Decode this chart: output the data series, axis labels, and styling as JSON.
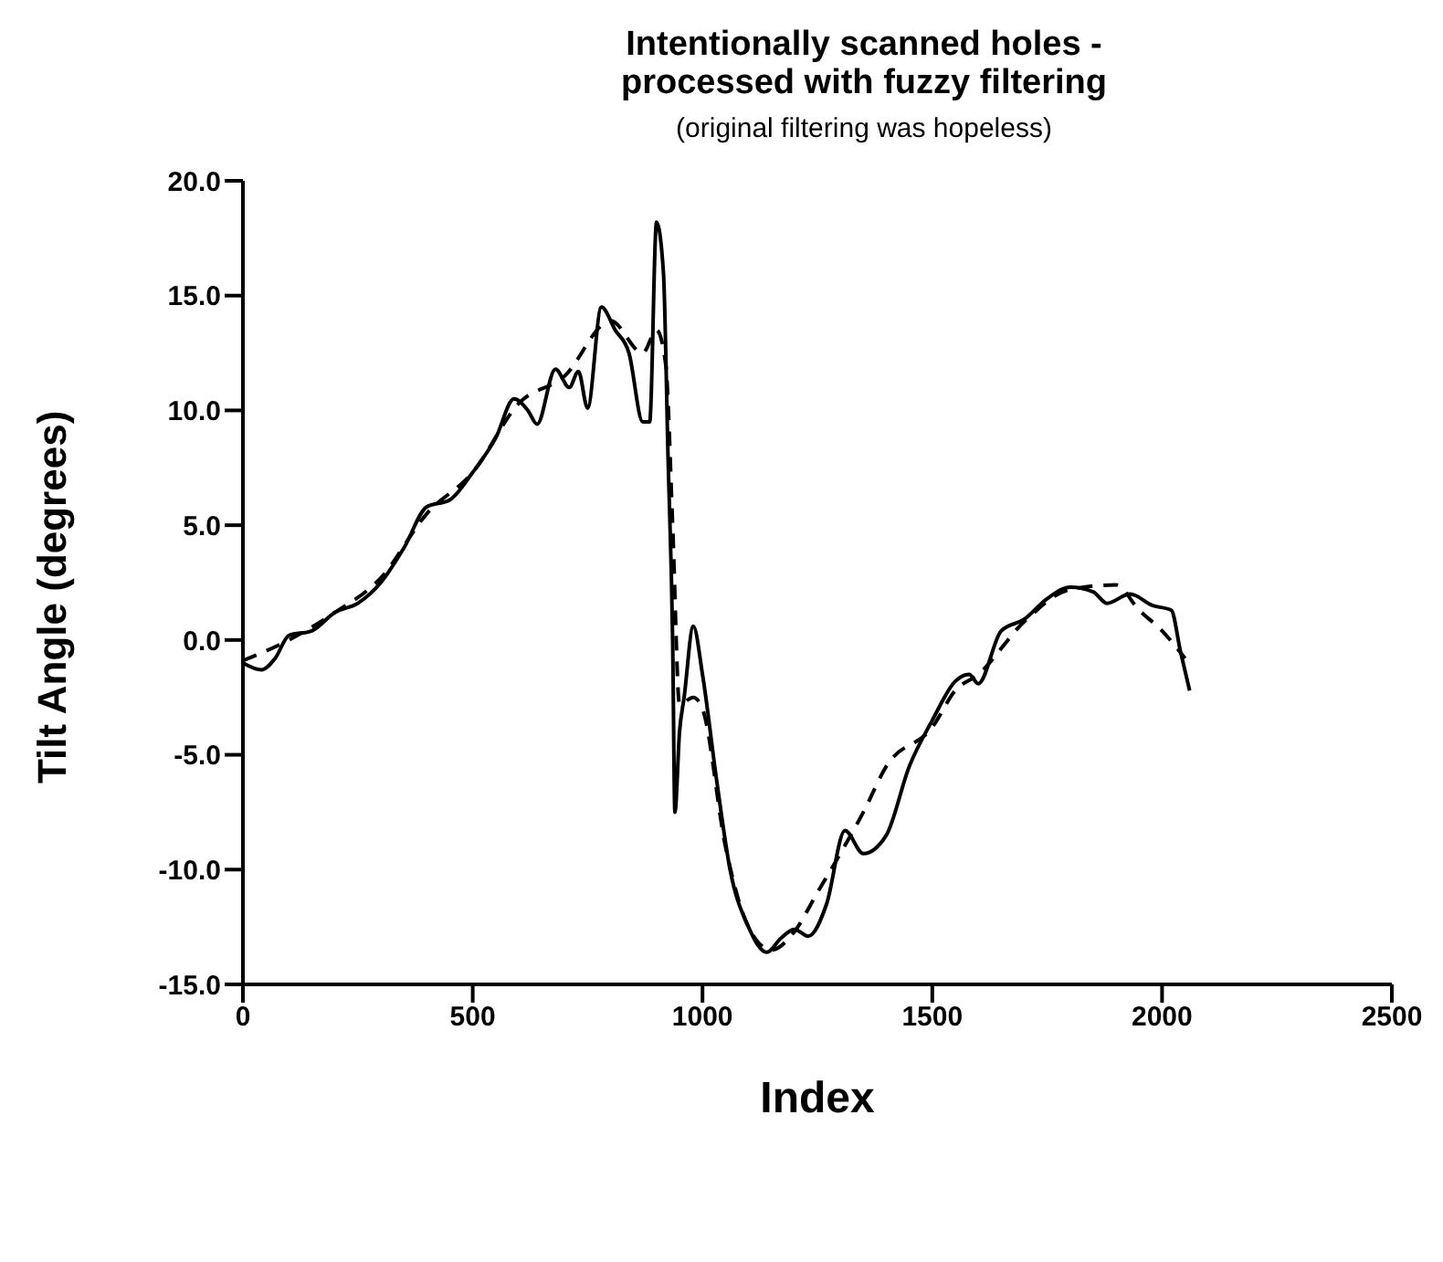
{
  "chart_data": {
    "type": "line",
    "title": "Intentionally scanned holes - processed with fuzzy filtering",
    "subtitle": "(original filtering was hopeless)",
    "xlabel": "Index",
    "ylabel": "Tilt Angle (degrees)",
    "xlim": [
      0,
      2500
    ],
    "xticks": [
      0,
      500,
      1000,
      1500,
      2000,
      2500
    ],
    "ylim": [
      -15,
      20
    ],
    "yticks": [
      {
        "value": -15,
        "label": "-15.0"
      },
      {
        "value": -10,
        "label": "-10.0"
      },
      {
        "value": -5,
        "label": "-5.0"
      },
      {
        "value": 0,
        "label": "0.0"
      },
      {
        "value": 5,
        "label": "5.0"
      },
      {
        "value": 10,
        "label": "10.0"
      },
      {
        "value": 15,
        "label": "15.0"
      },
      {
        "value": 20,
        "label": "20.0"
      }
    ],
    "grid": false,
    "legend": false,
    "marker": "none",
    "series": [
      {
        "color": "#000000",
        "line_style": "solid",
        "x": [
          0,
          40,
          70,
          100,
          150,
          200,
          250,
          300,
          350,
          400,
          450,
          500,
          550,
          590,
          620,
          640,
          680,
          710,
          730,
          750,
          780,
          810,
          840,
          870,
          885,
          900,
          915,
          925,
          935,
          940,
          950,
          960,
          980,
          1000,
          1030,
          1060,
          1100,
          1140,
          1170,
          1200,
          1230,
          1270,
          1310,
          1350,
          1400,
          1450,
          1500,
          1550,
          1580,
          1600,
          1650,
          1700,
          1750,
          1800,
          1850,
          1880,
          1930,
          1980,
          2020,
          2040,
          2060
        ],
        "values": [
          -1.0,
          -1.3,
          -0.8,
          0.2,
          0.4,
          1.2,
          1.6,
          2.5,
          4.0,
          5.8,
          6.1,
          7.3,
          8.8,
          10.5,
          10.0,
          9.4,
          11.8,
          11.0,
          11.7,
          10.1,
          14.5,
          13.5,
          12.5,
          9.5,
          9.5,
          18.2,
          16.0,
          8.0,
          0.0,
          -7.5,
          -4.0,
          -2.5,
          0.6,
          -1.5,
          -6.0,
          -10.0,
          -12.5,
          -13.6,
          -13.0,
          -12.6,
          -12.9,
          -11.5,
          -8.3,
          -9.3,
          -8.5,
          -5.5,
          -3.5,
          -1.8,
          -1.5,
          -1.9,
          0.4,
          0.9,
          1.8,
          2.3,
          2.1,
          1.6,
          2.0,
          1.5,
          1.3,
          -0.5,
          -2.2
        ]
      },
      {
        "color": "#000000",
        "line_style": "dashed",
        "x": [
          0,
          100,
          200,
          300,
          400,
          500,
          600,
          700,
          800,
          870,
          900,
          920,
          935,
          950,
          980,
          1000,
          1050,
          1100,
          1150,
          1200,
          1250,
          1300,
          1350,
          1400,
          1500,
          1550,
          1600,
          1700,
          1800,
          1900,
          1950,
          2000,
          2050
        ],
        "values": [
          -0.9,
          0.0,
          1.2,
          2.7,
          5.5,
          7.3,
          10.3,
          11.5,
          13.9,
          12.5,
          13.5,
          12.0,
          5.0,
          -2.8,
          -2.5,
          -3.0,
          -9.0,
          -12.5,
          -13.5,
          -12.7,
          -11.0,
          -9.3,
          -7.5,
          -5.5,
          -3.8,
          -2.2,
          -1.5,
          0.8,
          2.2,
          2.4,
          1.3,
          0.4,
          -0.8
        ]
      }
    ]
  }
}
